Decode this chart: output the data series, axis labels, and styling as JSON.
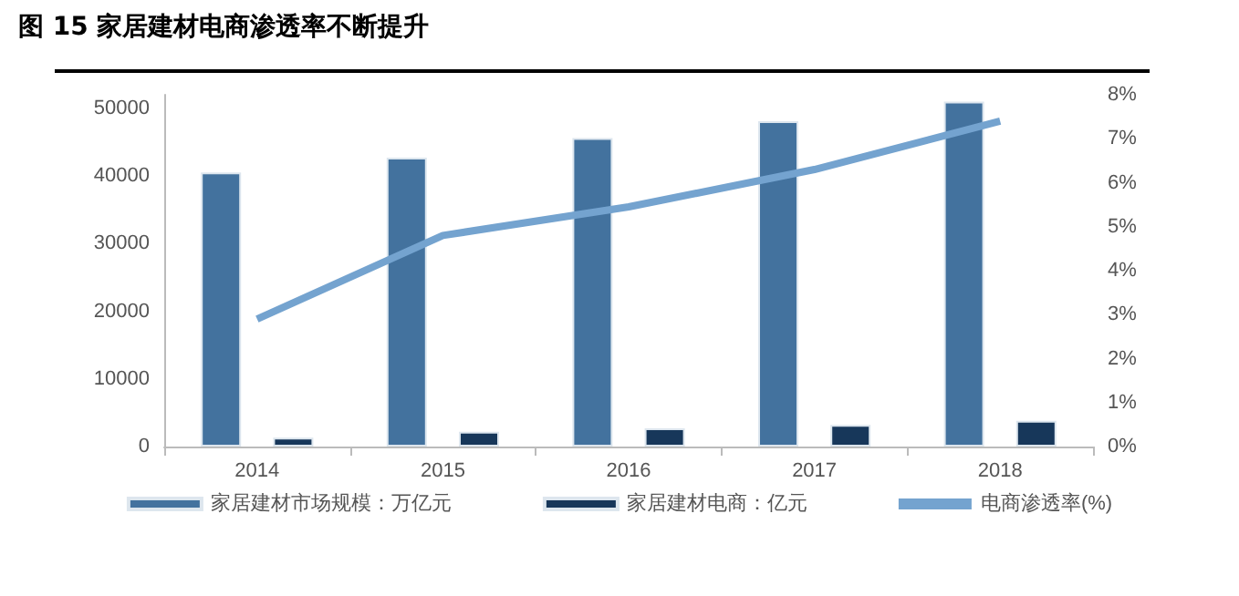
{
  "chart_data": {
    "type": "bar",
    "title": "图 15  家居建材电商渗透率不断提升",
    "categories": [
      "2014",
      "2015",
      "2016",
      "2017",
      "2018"
    ],
    "series": [
      {
        "name": "家居建材市场规模：万亿元",
        "color": "#43729e",
        "values": [
          40500,
          42700,
          45600,
          48100,
          51000
        ]
      },
      {
        "name": "家居建材电商：亿元",
        "color": "#17375a",
        "values": [
          1300,
          2200,
          2700,
          3200,
          3800
        ]
      },
      {
        "name": "电商渗透率(%)",
        "type": "line",
        "axis": "y2",
        "color": "#74a3cf",
        "values": [
          2.9,
          4.8,
          5.45,
          6.3,
          7.4
        ]
      }
    ],
    "ylim": [
      0,
      52000
    ],
    "yticks": [
      0,
      10000,
      20000,
      30000,
      40000,
      50000
    ],
    "y2lim": [
      0,
      8
    ],
    "y2ticks": [
      {
        "value": 0,
        "label": "0%"
      },
      {
        "value": 1,
        "label": "1%"
      },
      {
        "value": 2,
        "label": "2%"
      },
      {
        "value": 3,
        "label": "3%"
      },
      {
        "value": 4,
        "label": "4%"
      },
      {
        "value": 5,
        "label": "5%"
      },
      {
        "value": 6,
        "label": "6%"
      },
      {
        "value": 7,
        "label": "7%"
      },
      {
        "value": 8,
        "label": "8%"
      }
    ],
    "grid": false,
    "legend": "bottom",
    "marker": "none"
  }
}
